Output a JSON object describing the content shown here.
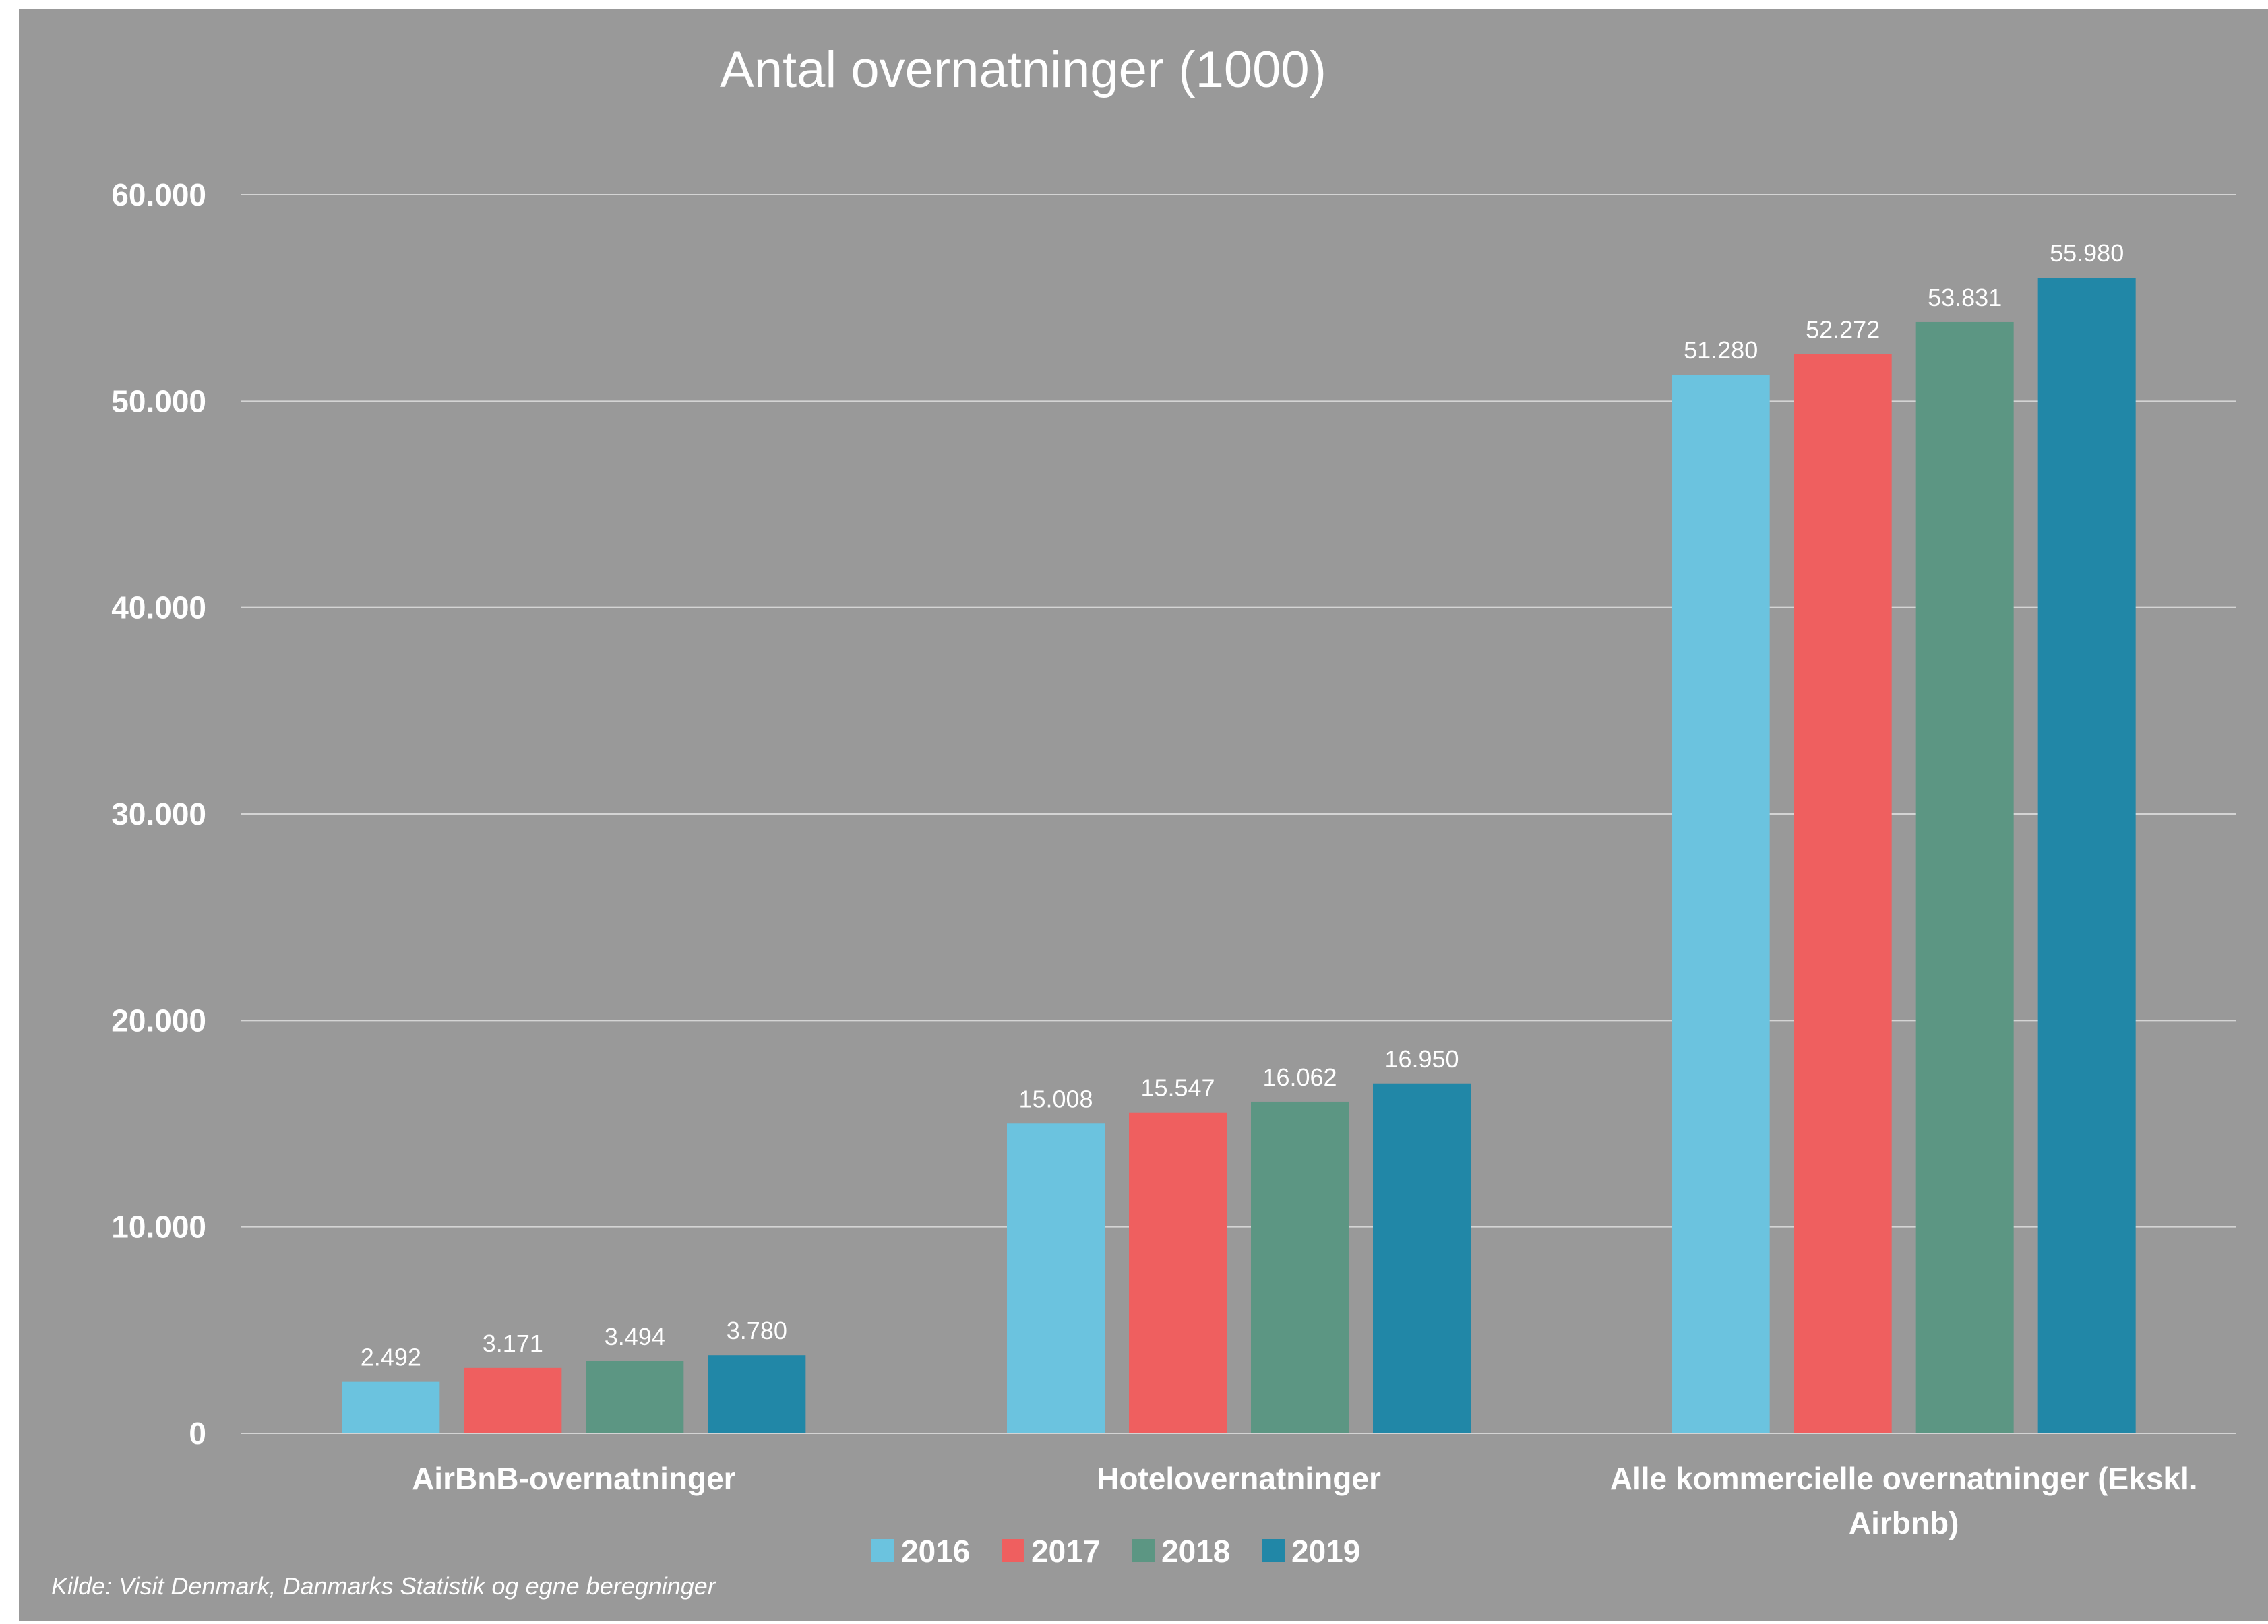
{
  "chart_data": {
    "type": "bar",
    "title": "Antal overnatninger (1000)",
    "categories": [
      "AirBnB-overnatninger",
      "Hotelovernatninger",
      "Alle kommercielle overnatninger (Ekskl. Airbnb)"
    ],
    "category_label_lines": [
      [
        "AirBnB-overnatninger"
      ],
      [
        "Hotelovernatninger"
      ],
      [
        "Alle kommercielle overnatninger (Ekskl.",
        "Airbnb)"
      ]
    ],
    "series": [
      {
        "name": "2016",
        "color": "#6BC3DF",
        "values": [
          2492,
          15008,
          51280
        ],
        "labels": [
          "2.492",
          "15.008",
          "51.280"
        ]
      },
      {
        "name": "2017",
        "color": "#EF5F5F",
        "values": [
          3171,
          15547,
          52272
        ],
        "labels": [
          "3.171",
          "15.547",
          "52.272"
        ]
      },
      {
        "name": "2018",
        "color": "#5C9683",
        "values": [
          3494,
          16062,
          53831
        ],
        "labels": [
          "3.494",
          "16.062",
          "53.831"
        ]
      },
      {
        "name": "2019",
        "color": "#2187A7",
        "values": [
          3780,
          16950,
          55980
        ],
        "labels": [
          "3.780",
          "16.950",
          "55.980"
        ]
      }
    ],
    "ylim": [
      0,
      60000
    ],
    "yticks": [
      0,
      10000,
      20000,
      30000,
      40000,
      50000,
      60000
    ],
    "ytick_labels": [
      "0",
      "10.000",
      "20.000",
      "30.000",
      "40.000",
      "50.000",
      "60.000"
    ],
    "xlabel": "",
    "ylabel": "",
    "grid": true,
    "legend": "bottom",
    "source_note": "Kilde: Visit Denmark, Danmarks Statistik og egne beregninger",
    "background_color": "#999999"
  }
}
